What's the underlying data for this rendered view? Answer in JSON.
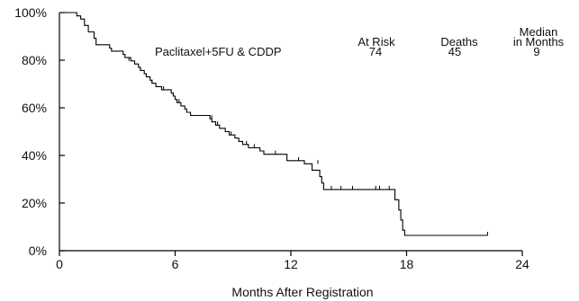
{
  "chart_data": {
    "type": "line",
    "subtype": "kaplan-meier step curve",
    "title": "",
    "xlabel": "Months After Registration",
    "ylabel": "",
    "xlim": [
      0,
      24
    ],
    "ylim": [
      0,
      100
    ],
    "x_ticks": [
      0,
      6,
      12,
      18,
      24
    ],
    "x_tick_labels": [
      "0",
      "6",
      "12",
      "18",
      "24"
    ],
    "y_ticks": [
      0,
      20,
      40,
      60,
      80,
      100
    ],
    "y_tick_labels": [
      "0%",
      "20%",
      "40%",
      "60%",
      "80%",
      "100%"
    ],
    "grid": false,
    "series": [
      {
        "name": "Paclitaxel+5FU & CDDP",
        "color": "#000000",
        "steps": [
          [
            0,
            100
          ],
          [
            0.9,
            98.6
          ],
          [
            1.1,
            97.3
          ],
          [
            1.3,
            94.6
          ],
          [
            1.5,
            91.9
          ],
          [
            1.8,
            89.2
          ],
          [
            1.9,
            86.5
          ],
          [
            2.6,
            85.1
          ],
          [
            2.7,
            83.8
          ],
          [
            3.3,
            82.4
          ],
          [
            3.4,
            81.1
          ],
          [
            3.7,
            79.7
          ],
          [
            3.9,
            78.4
          ],
          [
            4.1,
            77.0
          ],
          [
            4.2,
            75.7
          ],
          [
            4.4,
            74.3
          ],
          [
            4.5,
            73.0
          ],
          [
            4.7,
            71.6
          ],
          [
            4.8,
            70.3
          ],
          [
            5.0,
            68.9
          ],
          [
            5.3,
            67.6
          ],
          [
            5.8,
            66.2
          ],
          [
            5.9,
            64.9
          ],
          [
            6.0,
            63.5
          ],
          [
            6.1,
            62.2
          ],
          [
            6.3,
            60.8
          ],
          [
            6.5,
            59.5
          ],
          [
            6.6,
            58.1
          ],
          [
            6.8,
            56.8
          ],
          [
            7.8,
            55.4
          ],
          [
            7.9,
            54.1
          ],
          [
            8.1,
            52.7
          ],
          [
            8.3,
            51.4
          ],
          [
            8.6,
            50.0
          ],
          [
            8.8,
            48.6
          ],
          [
            9.1,
            47.3
          ],
          [
            9.3,
            45.9
          ],
          [
            9.5,
            44.6
          ],
          [
            9.8,
            43.2
          ],
          [
            10.4,
            41.9
          ],
          [
            10.6,
            40.5
          ],
          [
            11.8,
            37.8
          ],
          [
            12.7,
            36.5
          ],
          [
            13.1,
            33.8
          ],
          [
            13.5,
            31.1
          ],
          [
            13.6,
            28.4
          ],
          [
            13.7,
            25.7
          ],
          [
            17.4,
            21.4
          ],
          [
            17.6,
            17.1
          ],
          [
            17.7,
            12.9
          ],
          [
            17.8,
            8.6
          ],
          [
            17.9,
            6.4
          ],
          [
            22.2,
            6.4
          ]
        ],
        "censored": [
          [
            3.6,
            79.7
          ],
          [
            4.2,
            75.7
          ],
          [
            4.8,
            70.3
          ],
          [
            5.4,
            67.6
          ],
          [
            6.2,
            62.2
          ],
          [
            7.9,
            55.4
          ],
          [
            8.2,
            52.7
          ],
          [
            8.9,
            48.6
          ],
          [
            9.7,
            44.6
          ],
          [
            10.1,
            43.2
          ],
          [
            11.2,
            40.5
          ],
          [
            12.4,
            37.8
          ],
          [
            13.4,
            36.5
          ],
          [
            14.1,
            25.7
          ],
          [
            14.6,
            25.7
          ],
          [
            15.2,
            25.7
          ],
          [
            16.4,
            25.7
          ],
          [
            16.6,
            25.7
          ],
          [
            17.1,
            25.7
          ],
          [
            22.2,
            6.4
          ]
        ]
      }
    ],
    "annotation": {
      "series_label": "Paclitaxel+5FU & CDDP",
      "headers": {
        "at_risk": "At Risk",
        "deaths": "Deaths",
        "median_line1": "Median",
        "median_line2": "in Months"
      },
      "values": {
        "at_risk": "74",
        "deaths": "45",
        "median": "9"
      }
    }
  }
}
